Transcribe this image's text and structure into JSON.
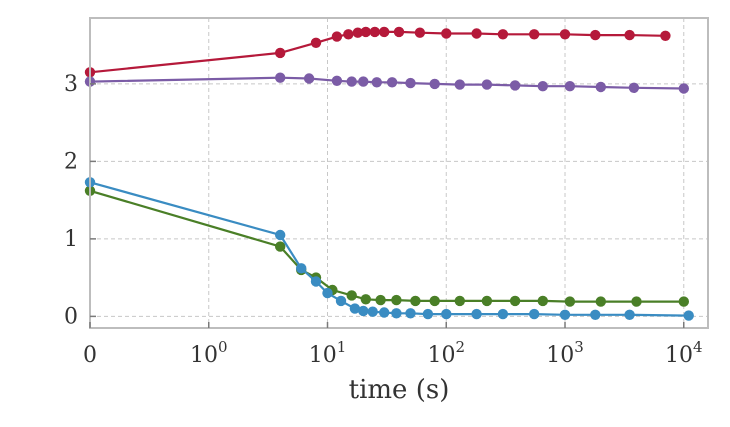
{
  "chart_data": {
    "type": "line",
    "xlabel": "time (s)",
    "ylabel": "",
    "x_scale": "symlog",
    "xlim": [
      0,
      16000
    ],
    "ylim": [
      -0.15,
      3.85
    ],
    "grid": true,
    "x_ticks": [
      {
        "value": 0,
        "base": "0",
        "exp": ""
      },
      {
        "value": 1,
        "base": "10",
        "exp": "0"
      },
      {
        "value": 10,
        "base": "10",
        "exp": "1"
      },
      {
        "value": 100,
        "base": "10",
        "exp": "2"
      },
      {
        "value": 1000,
        "base": "10",
        "exp": "3"
      },
      {
        "value": 10000,
        "base": "10",
        "exp": "4"
      }
    ],
    "y_ticks": [
      0,
      1,
      2,
      3
    ],
    "series": [
      {
        "color": "#b5193a",
        "points": [
          [
            0,
            3.15
          ],
          [
            4,
            3.4
          ],
          [
            8,
            3.53
          ],
          [
            12,
            3.61
          ],
          [
            15,
            3.64
          ],
          [
            18,
            3.66
          ],
          [
            21,
            3.67
          ],
          [
            25,
            3.67
          ],
          [
            30,
            3.67
          ],
          [
            40,
            3.67
          ],
          [
            60,
            3.66
          ],
          [
            100,
            3.65
          ],
          [
            180,
            3.65
          ],
          [
            300,
            3.64
          ],
          [
            550,
            3.64
          ],
          [
            1000,
            3.64
          ],
          [
            1800,
            3.63
          ],
          [
            3500,
            3.63
          ],
          [
            7000,
            3.62
          ]
        ]
      },
      {
        "color": "#7b5ca6",
        "points": [
          [
            0,
            3.03
          ],
          [
            4,
            3.08
          ],
          [
            7,
            3.07
          ],
          [
            12,
            3.04
          ],
          [
            16,
            3.03
          ],
          [
            20,
            3.03
          ],
          [
            26,
            3.02
          ],
          [
            35,
            3.02
          ],
          [
            50,
            3.01
          ],
          [
            80,
            3.0
          ],
          [
            130,
            2.99
          ],
          [
            220,
            2.99
          ],
          [
            380,
            2.98
          ],
          [
            650,
            2.97
          ],
          [
            1100,
            2.97
          ],
          [
            2000,
            2.96
          ],
          [
            3800,
            2.95
          ],
          [
            10000,
            2.94
          ]
        ]
      },
      {
        "color": "#4a7f27",
        "points": [
          [
            0,
            1.62
          ],
          [
            4,
            0.9
          ],
          [
            6,
            0.6
          ],
          [
            8,
            0.5
          ],
          [
            11,
            0.34
          ],
          [
            16,
            0.27
          ],
          [
            21,
            0.22
          ],
          [
            28,
            0.21
          ],
          [
            38,
            0.21
          ],
          [
            55,
            0.2
          ],
          [
            80,
            0.2
          ],
          [
            130,
            0.2
          ],
          [
            220,
            0.2
          ],
          [
            380,
            0.2
          ],
          [
            650,
            0.2
          ],
          [
            1100,
            0.19
          ],
          [
            2000,
            0.19
          ],
          [
            4000,
            0.19
          ],
          [
            10000,
            0.19
          ]
        ]
      },
      {
        "color": "#3a8cc2",
        "points": [
          [
            0,
            1.73
          ],
          [
            4,
            1.05
          ],
          [
            6,
            0.62
          ],
          [
            8,
            0.45
          ],
          [
            10,
            0.3
          ],
          [
            13,
            0.2
          ],
          [
            17,
            0.1
          ],
          [
            20,
            0.07
          ],
          [
            24,
            0.06
          ],
          [
            30,
            0.05
          ],
          [
            38,
            0.04
          ],
          [
            50,
            0.04
          ],
          [
            70,
            0.03
          ],
          [
            100,
            0.03
          ],
          [
            180,
            0.03
          ],
          [
            300,
            0.03
          ],
          [
            550,
            0.03
          ],
          [
            1000,
            0.02
          ],
          [
            1800,
            0.02
          ],
          [
            3500,
            0.02
          ],
          [
            11000,
            0.01
          ]
        ]
      }
    ]
  }
}
